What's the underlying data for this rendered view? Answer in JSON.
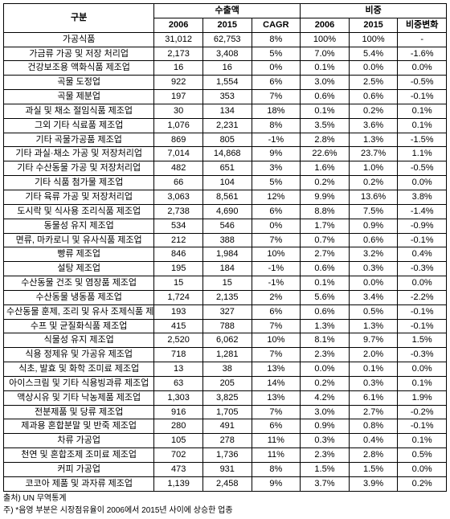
{
  "header": {
    "category": "구분",
    "export_group": "수출액",
    "share_group": "비중",
    "y2006": "2006",
    "y2015": "2015",
    "cagr": "CAGR",
    "s2006": "2006",
    "s2015": "2015",
    "share_change": "비중변화"
  },
  "rows": [
    {
      "label": "가공식품",
      "e06": "31,012",
      "e15": "62,753",
      "cagr": "8%",
      "s06": "100%",
      "s15": "100%",
      "chg": "-"
    },
    {
      "label": "가금류 가공 및 저장 처리업",
      "e06": "2,173",
      "e15": "3,408",
      "cagr": "5%",
      "s06": "7.0%",
      "s15": "5.4%",
      "chg": "-1.6%"
    },
    {
      "label": "건강보조용 액화식품 제조업",
      "e06": "16",
      "e15": "16",
      "cagr": "0%",
      "s06": "0.1%",
      "s15": "0.0%",
      "chg": "0.0%"
    },
    {
      "label": "곡물 도정업",
      "e06": "922",
      "e15": "1,554",
      "cagr": "6%",
      "s06": "3.0%",
      "s15": "2.5%",
      "chg": "-0.5%"
    },
    {
      "label": "곡물 제분업",
      "e06": "197",
      "e15": "353",
      "cagr": "7%",
      "s06": "0.6%",
      "s15": "0.6%",
      "chg": "-0.1%"
    },
    {
      "label": "과실 및 채소 절임식품 제조업",
      "e06": "30",
      "e15": "134",
      "cagr": "18%",
      "s06": "0.1%",
      "s15": "0.2%",
      "chg": "0.1%"
    },
    {
      "label": "그외 기타 식료품 제조업",
      "e06": "1,076",
      "e15": "2,231",
      "cagr": "8%",
      "s06": "3.5%",
      "s15": "3.6%",
      "chg": "0.1%"
    },
    {
      "label": "기타 곡물가공품 제조업",
      "e06": "869",
      "e15": "805",
      "cagr": "-1%",
      "s06": "2.8%",
      "s15": "1.3%",
      "chg": "-1.5%"
    },
    {
      "label": "기타 과실·채소 가공 및 저장처리업",
      "e06": "7,014",
      "e15": "14,868",
      "cagr": "9%",
      "s06": "22.6%",
      "s15": "23.7%",
      "chg": "1.1%"
    },
    {
      "label": "기타 수산동물 가공 및 저장처리업",
      "e06": "482",
      "e15": "651",
      "cagr": "3%",
      "s06": "1.6%",
      "s15": "1.0%",
      "chg": "-0.5%"
    },
    {
      "label": "기타 식품 첨가물 제조업",
      "e06": "66",
      "e15": "104",
      "cagr": "5%",
      "s06": "0.2%",
      "s15": "0.2%",
      "chg": "0.0%"
    },
    {
      "label": "기타 육류 가공 및 저장처리업",
      "e06": "3,063",
      "e15": "8,561",
      "cagr": "12%",
      "s06": "9.9%",
      "s15": "13.6%",
      "chg": "3.8%"
    },
    {
      "label": "도시락 및 식사용 조리식품 제조업",
      "e06": "2,738",
      "e15": "4,690",
      "cagr": "6%",
      "s06": "8.8%",
      "s15": "7.5%",
      "chg": "-1.4%"
    },
    {
      "label": "동물성 유지 제조업",
      "e06": "534",
      "e15": "546",
      "cagr": "0%",
      "s06": "1.7%",
      "s15": "0.9%",
      "chg": "-0.9%"
    },
    {
      "label": "면류, 마카로니 및 유사식품 제조업",
      "e06": "212",
      "e15": "388",
      "cagr": "7%",
      "s06": "0.7%",
      "s15": "0.6%",
      "chg": "-0.1%"
    },
    {
      "label": "빵류 제조업",
      "e06": "846",
      "e15": "1,984",
      "cagr": "10%",
      "s06": "2.7%",
      "s15": "3.2%",
      "chg": "0.4%"
    },
    {
      "label": "설탕 제조업",
      "e06": "195",
      "e15": "184",
      "cagr": "-1%",
      "s06": "0.6%",
      "s15": "0.3%",
      "chg": "-0.3%"
    },
    {
      "label": "수산동물 건조 및 염장품 제조업",
      "e06": "15",
      "e15": "15",
      "cagr": "-1%",
      "s06": "0.1%",
      "s15": "0.0%",
      "chg": "0.0%"
    },
    {
      "label": "수산동물 냉동품 제조업",
      "e06": "1,724",
      "e15": "2,135",
      "cagr": "2%",
      "s06": "5.6%",
      "s15": "3.4%",
      "chg": "-2.2%"
    },
    {
      "label": "수산동물 훈제, 조리 및 유사 조제식품 제조업",
      "e06": "193",
      "e15": "327",
      "cagr": "6%",
      "s06": "0.6%",
      "s15": "0.5%",
      "chg": "-0.1%"
    },
    {
      "label": "수프 및 균질화식품 제조업",
      "e06": "415",
      "e15": "788",
      "cagr": "7%",
      "s06": "1.3%",
      "s15": "1.3%",
      "chg": "-0.1%"
    },
    {
      "label": "식물성 유지 제조업",
      "e06": "2,520",
      "e15": "6,062",
      "cagr": "10%",
      "s06": "8.1%",
      "s15": "9.7%",
      "chg": "1.5%"
    },
    {
      "label": "식용 정제유 및 가공유 제조업",
      "e06": "718",
      "e15": "1,281",
      "cagr": "7%",
      "s06": "2.3%",
      "s15": "2.0%",
      "chg": "-0.3%"
    },
    {
      "label": "식초, 발효 및 화학 조미료 제조업",
      "e06": "13",
      "e15": "38",
      "cagr": "13%",
      "s06": "0.0%",
      "s15": "0.1%",
      "chg": "0.0%"
    },
    {
      "label": "아이스크림 및 기타 식용빙과류 제조업",
      "e06": "63",
      "e15": "205",
      "cagr": "14%",
      "s06": "0.2%",
      "s15": "0.3%",
      "chg": "0.1%"
    },
    {
      "label": "액상시유 및 기타 낙농제품 제조업",
      "e06": "1,303",
      "e15": "3,825",
      "cagr": "13%",
      "s06": "4.2%",
      "s15": "6.1%",
      "chg": "1.9%"
    },
    {
      "label": "전분제품 및 당류 제조업",
      "e06": "916",
      "e15": "1,705",
      "cagr": "7%",
      "s06": "3.0%",
      "s15": "2.7%",
      "chg": "-0.2%"
    },
    {
      "label": "제과용 혼합분말 및 반죽 제조업",
      "e06": "280",
      "e15": "491",
      "cagr": "6%",
      "s06": "0.9%",
      "s15": "0.8%",
      "chg": "-0.1%"
    },
    {
      "label": "차류 가공업",
      "e06": "105",
      "e15": "278",
      "cagr": "11%",
      "s06": "0.3%",
      "s15": "0.4%",
      "chg": "0.1%"
    },
    {
      "label": "천연 및 혼합조제 조미료 제조업",
      "e06": "702",
      "e15": "1,736",
      "cagr": "11%",
      "s06": "2.3%",
      "s15": "2.8%",
      "chg": "0.5%"
    },
    {
      "label": "커피 가공업",
      "e06": "473",
      "e15": "931",
      "cagr": "8%",
      "s06": "1.5%",
      "s15": "1.5%",
      "chg": "0.0%"
    },
    {
      "label": "코코아 제품 및 과자류 제조업",
      "e06": "1,139",
      "e15": "2,458",
      "cagr": "9%",
      "s06": "3.7%",
      "s15": "3.9%",
      "chg": "0.2%"
    }
  ],
  "footnotes": {
    "source": "출처) UN 무역통계",
    "note": "주) *음영 부분은 시장점유율이 2006에서 2015년 사이에 상승한 업종"
  }
}
